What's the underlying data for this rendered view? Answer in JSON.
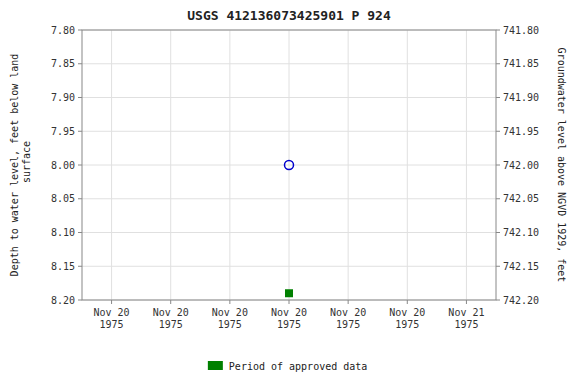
{
  "chart_data": {
    "type": "scatter",
    "title": "USGS 412136073425901 P 924",
    "ylabel": "Depth to water level, feet below land\n surface",
    "y2label": "Groundwater level above NGVD 1929, feet",
    "categories": [
      "Nov 20\n1975",
      "Nov 20\n1975",
      "Nov 20\n1975",
      "Nov 20\n1975",
      "Nov 20\n1975",
      "Nov 20\n1975",
      "Nov 21\n1975"
    ],
    "series": [
      {
        "color": "#0000cc",
        "marker": "open-circle",
        "values": [
          null,
          null,
          null,
          8.0,
          null,
          null,
          null
        ]
      },
      {
        "name": "Period of approved data",
        "color": "#008000",
        "marker": "square",
        "values": [
          null,
          null,
          null,
          8.19,
          null,
          null,
          null
        ]
      }
    ],
    "ylim": [
      8.2,
      7.8
    ],
    "yticks": [
      {
        "value": 7.8,
        "label": "7.80"
      },
      7.85,
      {
        "value": 7.9,
        "label": "7.90"
      },
      7.95,
      {
        "value": 8.0,
        "label": "8.00"
      },
      8.05,
      {
        "value": 8.1,
        "label": "8.10"
      },
      8.15,
      {
        "value": 8.2,
        "label": "8.20"
      }
    ],
    "y2lim": [
      742.2,
      741.8
    ],
    "y2ticks": [
      {
        "value": 741.8,
        "label": "741.80"
      },
      741.85,
      {
        "value": 741.9,
        "label": "741.90"
      },
      741.95,
      {
        "value": 742.0,
        "label": "742.00"
      },
      742.05,
      {
        "value": 742.1,
        "label": "742.10"
      },
      742.15,
      {
        "value": 742.2,
        "label": "742.20"
      }
    ],
    "grid": true,
    "legend": "bottom"
  }
}
